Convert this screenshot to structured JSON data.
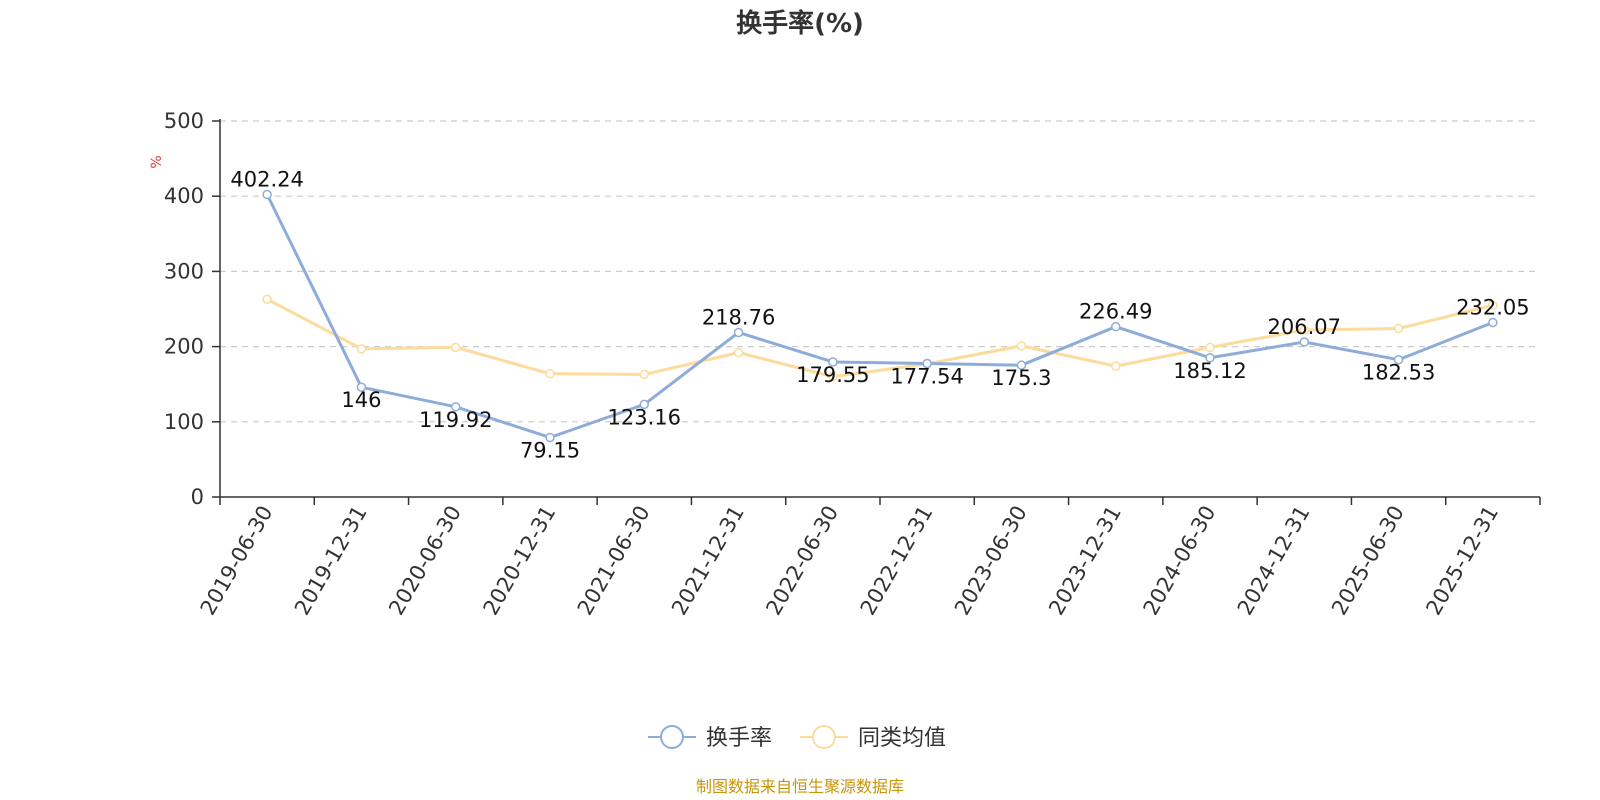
{
  "chart_data": {
    "type": "line",
    "title": "换手率(%)",
    "ylabel": "%",
    "ylim": [
      0,
      500
    ],
    "yticks": [
      0,
      100,
      200,
      300,
      400,
      500
    ],
    "grid": true,
    "categories": [
      "2019-06-30",
      "2019-12-31",
      "2020-06-30",
      "2020-12-31",
      "2021-06-30",
      "2021-12-31",
      "2022-06-30",
      "2022-12-31",
      "2023-06-30",
      "2023-12-31",
      "2024-06-30",
      "2024-12-31",
      "2025-06-30",
      "2025-12-31"
    ],
    "series": [
      {
        "name": "换手率",
        "color": "#8eacd9",
        "values": [
          402.24,
          146,
          119.92,
          79.15,
          123.16,
          218.76,
          179.55,
          177.54,
          175.3,
          226.49,
          185.12,
          206.07,
          182.53,
          232.05
        ],
        "labels": [
          "402.24",
          "146",
          "119.92",
          "79.15",
          "123.16",
          "218.76",
          "179.55",
          "177.54",
          "175.3",
          "226.49",
          "185.12",
          "206.07",
          "182.53",
          "232.05"
        ]
      },
      {
        "name": "同类均值",
        "color": "#fddb9c",
        "values": [
          263,
          197,
          199,
          164,
          163,
          192,
          160,
          177,
          201,
          174,
          199,
          222,
          224,
          255
        ]
      }
    ],
    "legend_position": "bottom-center"
  },
  "colors": {
    "axis": "#333333",
    "grid": "#cccccc",
    "unit": "#e53935",
    "source": "#c8960c"
  },
  "source_text": "制图数据来自恒生聚源数据库"
}
